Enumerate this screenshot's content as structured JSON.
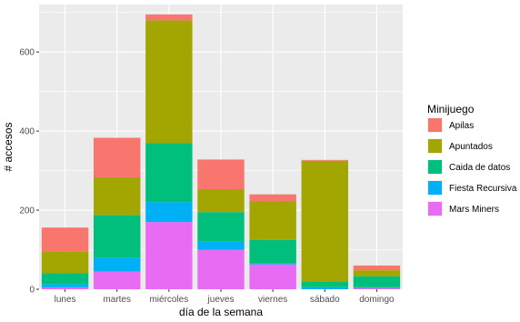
{
  "chart_data": {
    "type": "bar",
    "stacked": true,
    "categories": [
      "lunes",
      "martes",
      "miércoles",
      "jueves",
      "viernes",
      "sábado",
      "domingo"
    ],
    "series": [
      {
        "name": "Mars Miners",
        "color": "#E76BF3",
        "values": [
          5,
          45,
          170,
          100,
          63,
          0,
          3
        ]
      },
      {
        "name": "Fiesta Recursiva",
        "color": "#00B0F6",
        "values": [
          8,
          35,
          50,
          20,
          2,
          5,
          2
        ]
      },
      {
        "name": "Caida de datos",
        "color": "#00BF7D",
        "values": [
          28,
          108,
          150,
          75,
          60,
          15,
          28
        ]
      },
      {
        "name": "Apuntados",
        "color": "#A3A500",
        "values": [
          55,
          95,
          310,
          58,
          98,
          305,
          15
        ]
      },
      {
        "name": "Apilas",
        "color": "#F8766D",
        "values": [
          60,
          100,
          15,
          75,
          17,
          2,
          12
        ]
      }
    ],
    "xlabel": "día de la semana",
    "ylabel": "# accesos",
    "ylim": [
      0,
      720
    ],
    "yticks": [
      0,
      200,
      400,
      600
    ],
    "grid": true,
    "legend": {
      "title": "Minijuego",
      "placement": "right",
      "order": [
        "Apilas",
        "Apuntados",
        "Caida de datos",
        "Fiesta Recursiva",
        "Mars Miners"
      ]
    }
  }
}
